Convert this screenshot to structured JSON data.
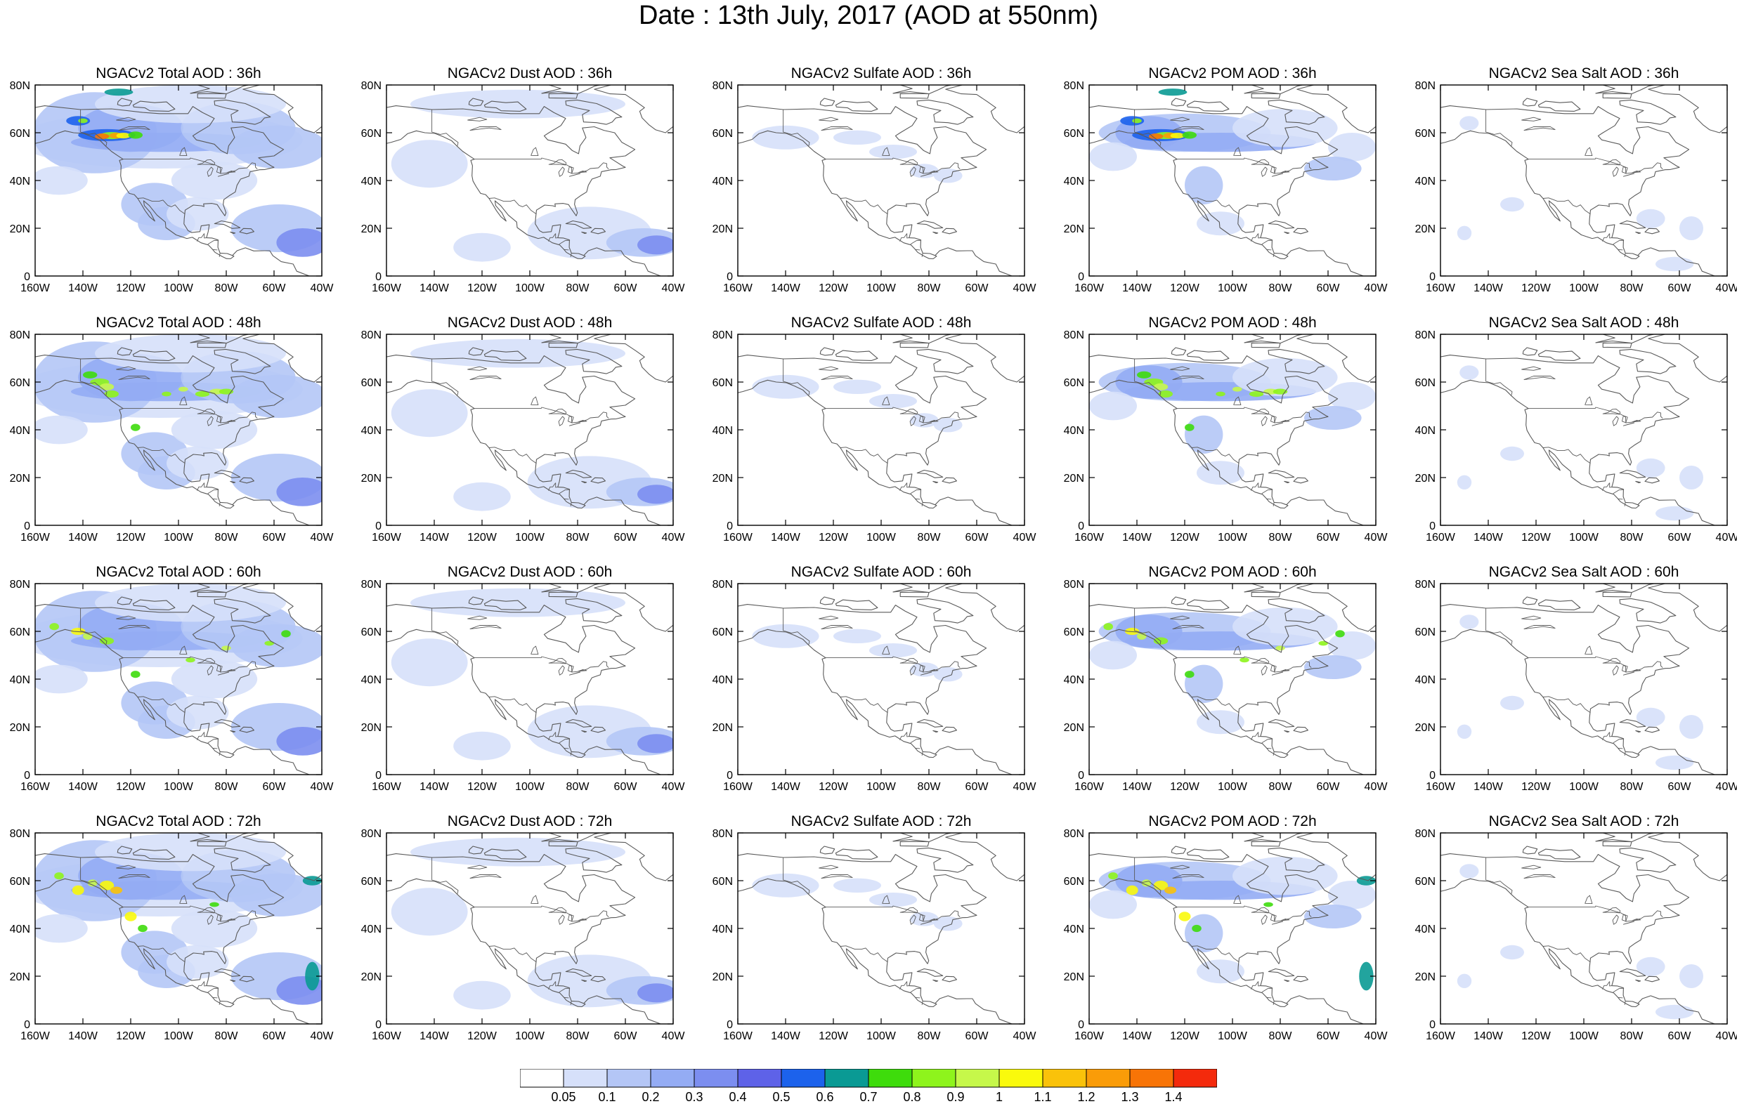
{
  "figure": {
    "title": "Date : 13th July, 2017 (AOD at 550nm)"
  },
  "axes": {
    "x_ticks": [
      "160W",
      "140W",
      "120W",
      "100W",
      "80W",
      "60W",
      "40W"
    ],
    "y_ticks": [
      "80N",
      "60N",
      "40N",
      "20N",
      "0"
    ],
    "lon_range": [
      -160,
      -40
    ],
    "lat_range": [
      0,
      80
    ]
  },
  "rows": [
    {
      "hour": "36h",
      "titles": [
        "NGACv2 Total AOD : 36h",
        "NGACv2 Dust AOD : 36h",
        "NGACv2 Sulfate AOD : 36h",
        "NGACv2 POM AOD : 36h",
        "NGACv2 Sea Salt AOD : 36h"
      ]
    },
    {
      "hour": "48h",
      "titles": [
        "NGACv2 Total AOD : 48h",
        "NGACv2 Dust AOD : 48h",
        "NGACv2 Sulfate AOD : 48h",
        "NGACv2 POM AOD : 48h",
        "NGACv2 Sea Salt AOD : 48h"
      ]
    },
    {
      "hour": "60h",
      "titles": [
        "NGACv2 Total AOD : 60h",
        "NGACv2 Dust AOD : 60h",
        "NGACv2 Sulfate AOD : 60h",
        "NGACv2 POM AOD : 60h",
        "NGACv2 Sea Salt AOD : 60h"
      ]
    },
    {
      "hour": "72h",
      "titles": [
        "NGACv2 Total AOD : 72h",
        "NGACv2 Dust AOD : 72h",
        "NGACv2 Sulfate AOD : 72h",
        "NGACv2 POM AOD : 72h",
        "NGACv2 Sea Salt  AOD : 72h"
      ]
    }
  ],
  "colorbar": {
    "labels": [
      "0.05",
      "0.1",
      "0.2",
      "0.3",
      "0.4",
      "0.5",
      "0.6",
      "0.7",
      "0.8",
      "0.9",
      "1",
      "1.1",
      "1.2",
      "1.3",
      "1.4"
    ],
    "colors": [
      "#ffffff",
      "#d6e0fa",
      "#b4c6f6",
      "#94acf4",
      "#7c8ef0",
      "#5e62e8",
      "#1c62ec",
      "#0a9a94",
      "#3edc0c",
      "#8ef41c",
      "#c6f84a",
      "#fafa0c",
      "#fac20a",
      "#fa9c08",
      "#f87406",
      "#f42a0c"
    ]
  }
}
